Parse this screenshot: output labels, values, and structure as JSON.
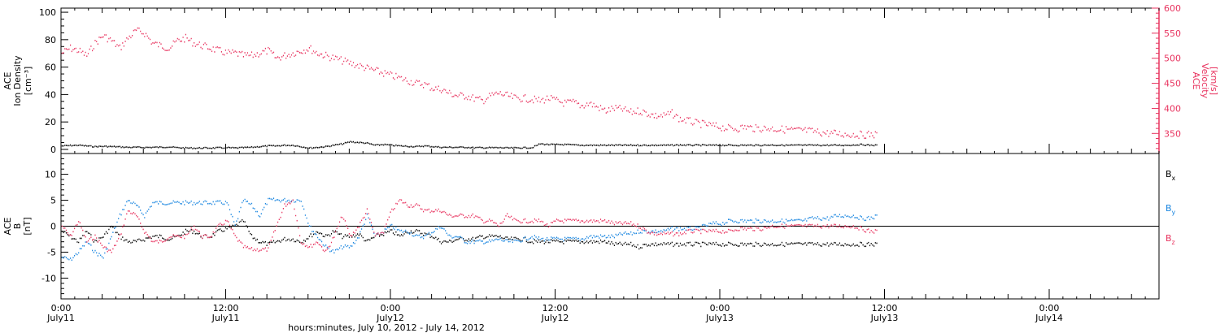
{
  "chart_data": [
    {
      "panel": "top",
      "type": "scatter",
      "ylabel": [
        "ACE",
        "Ion Density",
        "[cm⁻³]"
      ],
      "y2label": [
        "ACE",
        "Velocity",
        "[km/s]"
      ],
      "ylim": [
        -3,
        103
      ],
      "ytick_labels": [
        "0",
        "20",
        "40",
        "60",
        "80",
        "100"
      ],
      "y2lim": [
        310,
        600
      ],
      "y2tick_labels": [
        "350",
        "400",
        "450",
        "500",
        "550",
        "600"
      ],
      "grid": false,
      "series": [
        {
          "axis": "right",
          "color": "#e8335f",
          "x": [
            0,
            1,
            2,
            3,
            4,
            5,
            6,
            7,
            8,
            9,
            10,
            11,
            12,
            13,
            14,
            15,
            16,
            17,
            18,
            19,
            20,
            21,
            22,
            23,
            24,
            25,
            26,
            27,
            28,
            29,
            30,
            31,
            32,
            33,
            34,
            35,
            36,
            37,
            38,
            39,
            40,
            41,
            42,
            43,
            44,
            45,
            46,
            47,
            48,
            49,
            50,
            51,
            52,
            53,
            54,
            55,
            56,
            57,
            58,
            59,
            60,
            61,
            62,
            63,
            64,
            65,
            66,
            67,
            68,
            69,
            70,
            71,
            72,
            73,
            74,
            75,
            76,
            77,
            78,
            79,
            80,
            81,
            82,
            83,
            84,
            85,
            86,
            87,
            88,
            89,
            90,
            91,
            92,
            93,
            94,
            95,
            96,
            97,
            98,
            99
          ],
          "y": [
            510,
            520,
            515,
            505,
            530,
            545,
            535,
            520,
            540,
            555,
            550,
            530,
            525,
            520,
            535,
            540,
            530,
            525,
            520,
            515,
            510,
            510,
            505,
            505,
            510,
            515,
            500,
            505,
            510,
            515,
            520,
            510,
            505,
            500,
            495,
            490,
            485,
            480,
            475,
            470,
            465,
            460,
            455,
            450,
            448,
            440,
            438,
            430,
            425,
            425,
            420,
            415,
            425,
            430,
            425,
            420,
            420,
            418,
            415,
            420,
            415,
            410,
            412,
            405,
            410,
            402,
            395,
            400,
            398,
            392,
            395,
            390,
            385,
            385,
            390,
            378,
            375,
            370,
            368,
            365,
            362,
            360,
            360,
            363,
            360,
            360,
            360,
            358,
            358,
            356,
            356,
            354,
            352,
            350,
            350,
            348,
            348,
            347,
            348,
            347
          ]
        },
        {
          "axis": "left",
          "color": "#000000",
          "x": [
            0,
            1,
            2,
            3,
            4,
            5,
            6,
            7,
            8,
            9,
            10,
            11,
            12,
            13,
            14,
            15,
            16,
            17,
            18,
            19,
            20,
            21,
            22,
            23,
            24,
            25,
            26,
            27,
            28,
            29,
            30,
            31,
            32,
            33,
            34,
            35,
            36,
            37,
            38,
            39,
            40,
            41,
            42,
            43,
            44,
            45,
            46,
            47,
            48,
            49,
            50,
            51,
            52,
            53,
            54,
            55,
            56,
            57,
            58,
            59,
            60,
            61,
            62,
            63,
            64,
            65,
            66,
            67,
            68,
            69,
            70,
            71,
            72,
            73,
            74,
            75,
            76,
            77,
            78,
            79,
            80,
            81,
            82,
            83,
            84,
            85,
            86,
            87,
            88,
            89,
            90,
            91,
            92,
            93,
            94,
            95,
            96,
            97,
            98,
            99
          ],
          "y": [
            2.5,
            2.8,
            3.0,
            2.5,
            2.0,
            2.2,
            2.0,
            1.8,
            1.5,
            1.5,
            1.4,
            1.5,
            1.6,
            1.8,
            1.2,
            1.0,
            0.9,
            1.0,
            1.0,
            1.1,
            1.2,
            1.0,
            1.2,
            1.5,
            2.0,
            2.5,
            2.5,
            3.0,
            3.0,
            2.0,
            1.0,
            1.5,
            2.0,
            3.0,
            4.0,
            5.5,
            5.0,
            4.5,
            3.0,
            3.5,
            3.0,
            2.5,
            2.2,
            2.0,
            2.5,
            2.0,
            1.5,
            1.5,
            1.5,
            1.5,
            1.2,
            1.2,
            1.2,
            1.2,
            1.0,
            1.0,
            1.2,
            1.2,
            4.0,
            3.5,
            3.5,
            3.5,
            3.2,
            3.0,
            3.0,
            3.0,
            3.0,
            3.0,
            3.0,
            3.0,
            3.0,
            3.0,
            3.0,
            3.0,
            3.0,
            3.2,
            3.0,
            3.0,
            3.0,
            3.0,
            3.0,
            3.0,
            3.0,
            3.0,
            3.0,
            3.0,
            3.2,
            3.0,
            3.0,
            3.0,
            3.0,
            3.0,
            3.0,
            3.0,
            3.0,
            3.0,
            3.2,
            3.5,
            3.0,
            3.0
          ]
        }
      ]
    },
    {
      "panel": "bottom",
      "type": "scatter",
      "ylabel": [
        "ACE",
        "B",
        "[nT]"
      ],
      "ylim": [
        -14,
        14
      ],
      "ytick_labels": [
        "-10",
        "-5",
        "0",
        "5",
        "10"
      ],
      "zero_line": true,
      "grid": false,
      "legend_position": "right",
      "series": [
        {
          "name": "Bx",
          "label_main": "B",
          "label_sub": "x",
          "color": "#000000",
          "x": [
            0,
            1,
            2,
            3,
            4,
            5,
            6,
            7,
            8,
            9,
            10,
            11,
            12,
            13,
            14,
            15,
            16,
            17,
            18,
            19,
            20,
            21,
            22,
            23,
            24,
            25,
            26,
            27,
            28,
            29,
            30,
            31,
            32,
            33,
            34,
            35,
            36,
            37,
            38,
            39,
            40,
            41,
            42,
            43,
            44,
            45,
            46,
            47,
            48,
            49,
            50,
            51,
            52,
            53,
            54,
            55,
            56,
            57,
            58,
            59,
            60,
            61,
            62,
            63,
            64,
            65,
            66,
            67,
            68,
            69,
            70,
            71,
            72,
            73,
            74,
            75,
            76,
            77,
            78,
            79,
            80,
            81,
            82,
            83,
            84,
            85,
            86,
            87,
            88,
            89,
            90,
            91,
            92,
            93,
            94,
            95,
            96,
            97,
            98,
            99
          ],
          "y": [
            -1.0,
            -2.0,
            -3.0,
            -1.0,
            -3.0,
            -2.0,
            0.0,
            -2.0,
            -3.0,
            -3.0,
            -2.5,
            -2.0,
            -2.0,
            -2.5,
            -2.0,
            -1.0,
            -1.0,
            -2.0,
            -2.0,
            -1.0,
            -0.5,
            0.0,
            1.0,
            -2.0,
            -3.0,
            -3.5,
            -3.0,
            -2.5,
            -2.5,
            -3.0,
            -2.0,
            -1.0,
            -2.0,
            -1.0,
            -2.0,
            -2.0,
            -1.5,
            -3.0,
            -2.0,
            -1.5,
            -1.0,
            -2.0,
            -1.0,
            -1.0,
            -1.5,
            -2.0,
            -3.0,
            -3.0,
            -2.5,
            -2.5,
            -2.5,
            -2.0,
            -2.0,
            -2.0,
            -2.5,
            -2.5,
            -2.5,
            -3.0,
            -3.0,
            -3.0,
            -3.0,
            -3.0,
            -3.0,
            -3.0,
            -3.0,
            -3.0,
            -3.0,
            -3.5,
            -3.5,
            -3.5,
            -4.0,
            -3.5,
            -3.5,
            -3.5,
            -3.5,
            -3.5,
            -3.5,
            -3.5,
            -3.5,
            -3.5,
            -3.5,
            -3.5,
            -3.5,
            -3.5,
            -3.5,
            -3.5,
            -3.5,
            -3.5,
            -3.5,
            -3.5,
            -3.5,
            -3.5,
            -3.5,
            -3.5,
            -3.5,
            -3.5,
            -3.5,
            -3.5,
            -3.5,
            -3.5
          ]
        },
        {
          "name": "By",
          "label_main": "B",
          "label_sub": "y",
          "color": "#1a86e0",
          "x": [
            0,
            1,
            2,
            3,
            4,
            5,
            6,
            7,
            8,
            9,
            10,
            11,
            12,
            13,
            14,
            15,
            16,
            17,
            18,
            19,
            20,
            21,
            22,
            23,
            24,
            25,
            26,
            27,
            28,
            29,
            30,
            31,
            32,
            33,
            34,
            35,
            36,
            37,
            38,
            39,
            40,
            41,
            42,
            43,
            44,
            45,
            46,
            47,
            48,
            49,
            50,
            51,
            52,
            53,
            54,
            55,
            56,
            57,
            58,
            59,
            60,
            61,
            62,
            63,
            64,
            65,
            66,
            67,
            68,
            69,
            70,
            71,
            72,
            73,
            74,
            75,
            76,
            77,
            78,
            79,
            80,
            81,
            82,
            83,
            84,
            85,
            86,
            87,
            88,
            89,
            90,
            91,
            92,
            93,
            94,
            95,
            96,
            97,
            98,
            99
          ],
          "y": [
            -6.0,
            -6.5,
            -5.0,
            -3.0,
            -5.0,
            -6.0,
            -2.0,
            2.0,
            5.0,
            4.0,
            2.0,
            4.5,
            4.5,
            4.5,
            4.5,
            4.5,
            4.5,
            4.5,
            4.5,
            4.5,
            4.5,
            0.0,
            5.0,
            4.0,
            2.0,
            5.0,
            5.0,
            5.0,
            5.0,
            5.0,
            0.0,
            -2.0,
            -4.0,
            -5.0,
            -4.0,
            -4.0,
            -2.0,
            2.0,
            -2.0,
            -1.0,
            0.0,
            -1.0,
            -1.0,
            -2.0,
            -2.0,
            -1.0,
            0.0,
            -2.0,
            -2.0,
            -3.0,
            -3.0,
            -3.0,
            -3.0,
            -2.5,
            -3.0,
            -3.0,
            -2.5,
            -2.0,
            -2.5,
            -2.5,
            -2.5,
            -2.5,
            -2.5,
            -2.5,
            -2.0,
            -2.0,
            -2.0,
            -2.0,
            -1.5,
            -1.5,
            -1.0,
            -1.0,
            -1.0,
            -1.0,
            -0.5,
            -0.5,
            -0.5,
            -0.5,
            0.0,
            0.5,
            0.5,
            1.0,
            1.0,
            1.0,
            1.0,
            1.0,
            1.0,
            1.0,
            1.0,
            1.0,
            1.0,
            1.5,
            1.5,
            1.5,
            2.0,
            2.0,
            2.0,
            1.5,
            1.5,
            2.0
          ]
        },
        {
          "name": "Bz",
          "label_main": "B",
          "label_sub": "z",
          "color": "#e8335f",
          "x": [
            0,
            1,
            2,
            3,
            4,
            5,
            6,
            7,
            8,
            9,
            10,
            11,
            12,
            13,
            14,
            15,
            16,
            17,
            18,
            19,
            20,
            21,
            22,
            23,
            24,
            25,
            26,
            27,
            28,
            29,
            30,
            31,
            32,
            33,
            34,
            35,
            36,
            37,
            38,
            39,
            40,
            41,
            42,
            43,
            44,
            45,
            46,
            47,
            48,
            49,
            50,
            51,
            52,
            53,
            54,
            55,
            56,
            57,
            58,
            59,
            60,
            61,
            62,
            63,
            64,
            65,
            66,
            67,
            68,
            69,
            70,
            71,
            72,
            73,
            74,
            75,
            76,
            77,
            78,
            79,
            80,
            81,
            82,
            83,
            84,
            85,
            86,
            87,
            88,
            89,
            90,
            91,
            92,
            93,
            94,
            95,
            96,
            97,
            98,
            99
          ],
          "y": [
            0.0,
            -2.0,
            1.0,
            -3.0,
            -2.0,
            -4.0,
            -5.0,
            -2.0,
            3.0,
            2.0,
            -1.0,
            -3.0,
            -3.0,
            -2.0,
            -2.0,
            -2.0,
            0.0,
            -2.0,
            -2.0,
            0.0,
            1.0,
            -2.0,
            -4.0,
            -4.5,
            -4.5,
            -4.5,
            0.0,
            4.0,
            5.0,
            -3.0,
            -4.0,
            -3.0,
            -5.0,
            -2.0,
            2.0,
            -2.0,
            0.0,
            3.0,
            -2.0,
            -1.0,
            3.0,
            5.0,
            4.0,
            4.0,
            3.0,
            3.0,
            3.0,
            2.0,
            2.0,
            2.0,
            2.0,
            1.0,
            1.0,
            0.0,
            2.0,
            1.0,
            1.0,
            1.0,
            1.0,
            0.0,
            1.0,
            1.0,
            1.0,
            1.0,
            1.0,
            1.0,
            1.0,
            0.5,
            0.5,
            0.5,
            0.0,
            -1.0,
            -1.5,
            -1.5,
            -1.5,
            -1.5,
            -1.0,
            -1.0,
            -1.0,
            -1.0,
            -1.0,
            -1.0,
            -0.5,
            -0.5,
            -0.5,
            -0.5,
            0.0,
            0.0,
            0.0,
            0.0,
            0.0,
            0.0,
            0.0,
            0.0,
            0.0,
            0.0,
            0.0,
            -0.5,
            -1.0,
            -1.0
          ]
        }
      ]
    }
  ],
  "x_axis": {
    "range_hours": [
      0,
      80
    ],
    "tick_hours": [
      0,
      12,
      24,
      36,
      48,
      60,
      72
    ],
    "tick_labels": [
      [
        "0:00",
        "July11"
      ],
      [
        "12:00",
        "July11"
      ],
      [
        "0:00",
        "July12"
      ],
      [
        "12:00",
        "July12"
      ],
      [
        "0:00",
        "July13"
      ],
      [
        "12:00",
        "July13"
      ],
      [
        "0:00",
        "July14"
      ]
    ],
    "title": "hours:minutes, July 10, 2012 - July 14, 2012"
  },
  "colors": {
    "red": "#e8335f",
    "blue": "#1a86e0",
    "black": "#000000"
  }
}
